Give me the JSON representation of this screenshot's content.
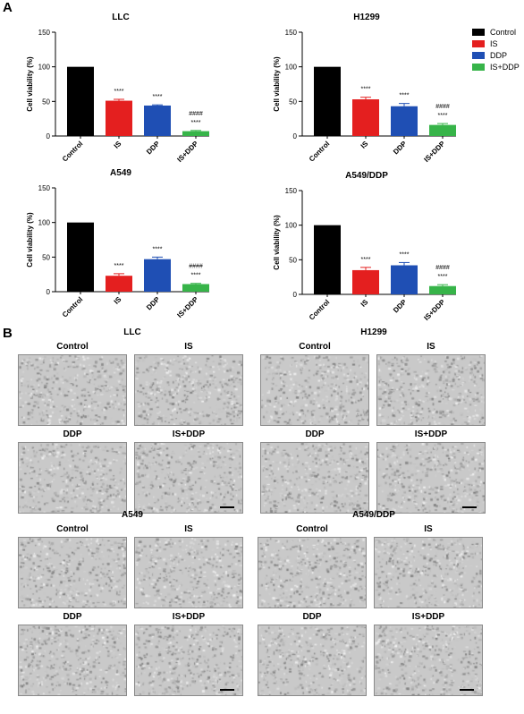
{
  "panel_labels": {
    "a": "A",
    "b": "B"
  },
  "legend": [
    {
      "name": "Control",
      "color": "#000000"
    },
    {
      "name": "IS",
      "color": "#e41f1f"
    },
    {
      "name": "DDP",
      "color": "#1f4fb4"
    },
    {
      "name": "IS+DDP",
      "color": "#37b449"
    }
  ],
  "chart_data": [
    {
      "type": "bar",
      "title": "LLC",
      "ylabel": "Cell viability (%)",
      "ylim": [
        0,
        150
      ],
      "yticks": [
        "0",
        "50",
        "100",
        "150"
      ],
      "categories": [
        "Control",
        "IS",
        "DDP",
        "IS+DDP"
      ],
      "values": [
        100,
        51,
        44,
        7
      ],
      "errors": [
        0,
        2,
        1,
        1
      ],
      "annotations": [
        [],
        [
          "****"
        ],
        [
          "****"
        ],
        [
          "####",
          "****"
        ]
      ]
    },
    {
      "type": "bar",
      "title": "H1299",
      "ylabel": "Cell viability (%)",
      "ylim": [
        0,
        150
      ],
      "yticks": [
        "0",
        "50",
        "100",
        "150"
      ],
      "categories": [
        "Control",
        "IS",
        "DDP",
        "IS+DDP"
      ],
      "values": [
        100,
        53,
        43,
        16
      ],
      "errors": [
        0,
        3,
        4,
        2
      ],
      "annotations": [
        [],
        [
          "****"
        ],
        [
          "****"
        ],
        [
          "####",
          "****"
        ]
      ]
    },
    {
      "type": "bar",
      "title": "A549",
      "ylabel": "Cell viability (%)",
      "ylim": [
        0,
        150
      ],
      "yticks": [
        "0",
        "50",
        "100",
        "150"
      ],
      "categories": [
        "Control",
        "IS",
        "DDP",
        "IS+DDP"
      ],
      "values": [
        100,
        23,
        47,
        11
      ],
      "errors": [
        0,
        3,
        3,
        1
      ],
      "annotations": [
        [],
        [
          "****"
        ],
        [
          "****"
        ],
        [
          "####",
          "****"
        ]
      ]
    },
    {
      "type": "bar",
      "title": "A549/DDP",
      "ylabel": "Cell viability (%)",
      "ylim": [
        0,
        150
      ],
      "yticks": [
        "0",
        "50",
        "100",
        "150"
      ],
      "categories": [
        "Control",
        "IS",
        "DDP",
        "IS+DDP"
      ],
      "values": [
        100,
        35,
        42,
        12
      ],
      "errors": [
        0,
        4,
        4,
        2
      ],
      "annotations": [
        [],
        [
          "****"
        ],
        [
          "****"
        ],
        [
          "####",
          "****"
        ]
      ]
    }
  ],
  "micrographs": [
    {
      "cell_line": "LLC",
      "conditions": [
        "Control",
        "IS",
        "DDP",
        "IS+DDP"
      ]
    },
    {
      "cell_line": "H1299",
      "conditions": [
        "Control",
        "IS",
        "DDP",
        "IS+DDP"
      ]
    },
    {
      "cell_line": "A549",
      "conditions": [
        "Control",
        "IS",
        "DDP",
        "IS+DDP"
      ]
    },
    {
      "cell_line": "A549/DDP",
      "conditions": [
        "Control",
        "IS",
        "DDP",
        "IS+DDP"
      ]
    }
  ]
}
